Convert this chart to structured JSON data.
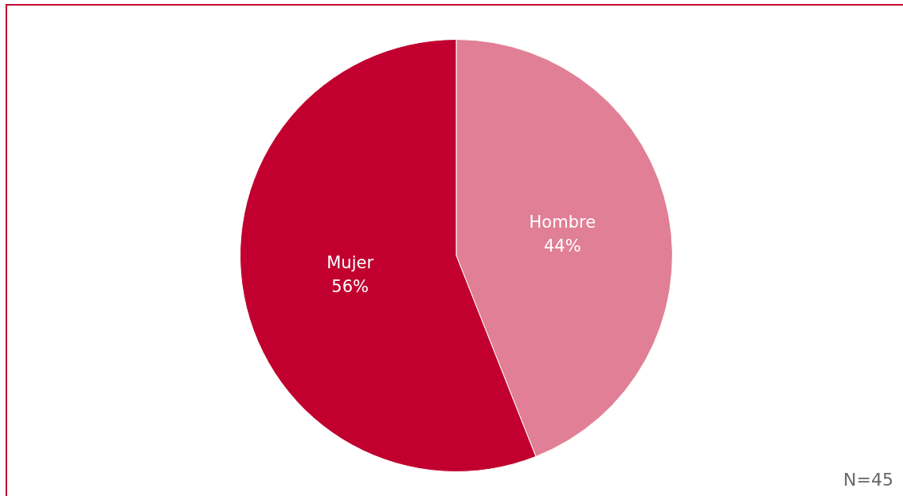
{
  "chart_data": {
    "type": "pie",
    "categories": [
      "Hombre",
      "Mujer"
    ],
    "values": [
      44,
      56
    ],
    "colors": [
      "#e07f95",
      "#c1002f"
    ],
    "value_labels": [
      "44%",
      "56%"
    ],
    "legend": false,
    "annotations": [
      "N=45"
    ]
  }
}
